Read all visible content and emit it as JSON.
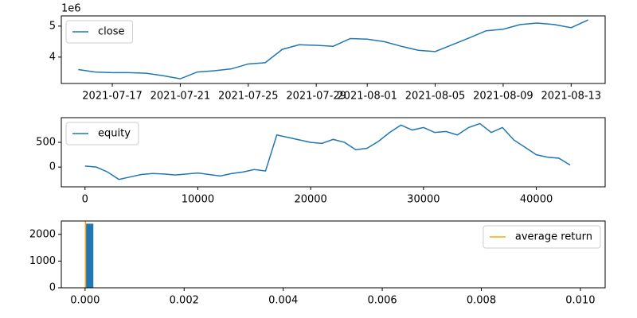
{
  "chart_data": [
    {
      "type": "line",
      "legend": "upper left",
      "y_offset_label": "1e6",
      "x": [
        "2021-07-15",
        "2021-07-16",
        "2021-07-17",
        "2021-07-18",
        "2021-07-19",
        "2021-07-20",
        "2021-07-21",
        "2021-07-22",
        "2021-07-23",
        "2021-07-24",
        "2021-07-25",
        "2021-07-26",
        "2021-07-27",
        "2021-07-28",
        "2021-07-29",
        "2021-07-30",
        "2021-07-31",
        "2021-08-01",
        "2021-08-02",
        "2021-08-03",
        "2021-08-04",
        "2021-08-05",
        "2021-08-06",
        "2021-08-07",
        "2021-08-08",
        "2021-08-09",
        "2021-08-10",
        "2021-08-11",
        "2021-08-12",
        "2021-08-13",
        "2021-08-14"
      ],
      "series": [
        {
          "name": "close",
          "color": "#1f77b4",
          "values": [
            3600000,
            3520000,
            3500000,
            3500000,
            3480000,
            3400000,
            3300000,
            3520000,
            3560000,
            3620000,
            3780000,
            3820000,
            4250000,
            4400000,
            4380000,
            4350000,
            4600000,
            4580000,
            4500000,
            4350000,
            4220000,
            4180000,
            4400000,
            4620000,
            4850000,
            4900000,
            5050000,
            5100000,
            5050000,
            4950000,
            5200000
          ]
        }
      ],
      "xlim": [
        "2021-07-14",
        "2021-08-15"
      ],
      "xticks": [
        "2021-07-17",
        "2021-07-21",
        "2021-07-25",
        "2021-07-29",
        "2021-08-01",
        "2021-08-05",
        "2021-08-09",
        "2021-08-13"
      ],
      "ylim": [
        3150000,
        5330000
      ],
      "yticks": [
        {
          "value": 4000000,
          "label": "4"
        },
        {
          "value": 5000000,
          "label": "5"
        }
      ]
    },
    {
      "type": "line",
      "legend": "upper left",
      "x": [
        0,
        1000,
        2000,
        3000,
        4000,
        5000,
        6000,
        7000,
        8000,
        9000,
        10000,
        11000,
        12000,
        13000,
        14000,
        15000,
        16000,
        17000,
        18000,
        19000,
        20000,
        21000,
        22000,
        23000,
        24000,
        25000,
        26000,
        27000,
        28000,
        29000,
        30000,
        31000,
        32000,
        33000,
        34000,
        35000,
        36000,
        37000,
        38000,
        39000,
        40000,
        41000,
        42000,
        43000
      ],
      "series": [
        {
          "name": "equity",
          "color": "#1f77b4",
          "values": [
            20,
            0,
            -100,
            -250,
            -200,
            -150,
            -130,
            -140,
            -160,
            -140,
            -120,
            -150,
            -180,
            -130,
            -100,
            -50,
            -80,
            650,
            600,
            550,
            500,
            480,
            560,
            500,
            350,
            380,
            520,
            700,
            850,
            750,
            800,
            700,
            720,
            650,
            800,
            880,
            700,
            800,
            550,
            400,
            250,
            200,
            180,
            40
          ]
        }
      ],
      "xlim": [
        -2100,
        46100
      ],
      "xticks": [
        0,
        10000,
        20000,
        30000,
        40000
      ],
      "ylim": [
        -400,
        1000
      ],
      "yticks": [
        0,
        500
      ]
    },
    {
      "type": "histogram",
      "legend": "upper right",
      "color": "#1f77b4",
      "bins": [
        0,
        0.000167
      ],
      "values": [
        2400
      ],
      "vline": {
        "name": "average return",
        "value": 1e-05,
        "color": "#ffa500"
      },
      "xlim": [
        -0.00048,
        0.0105
      ],
      "xticks": [
        {
          "value": 0,
          "label": "0.000"
        },
        {
          "value": 0.002,
          "label": "0.002"
        },
        {
          "value": 0.004,
          "label": "0.004"
        },
        {
          "value": 0.006,
          "label": "0.006"
        },
        {
          "value": 0.008,
          "label": "0.008"
        },
        {
          "value": 0.01,
          "label": "0.010"
        }
      ],
      "ylim": [
        0,
        2500
      ],
      "yticks": [
        0,
        1000,
        2000
      ]
    }
  ]
}
